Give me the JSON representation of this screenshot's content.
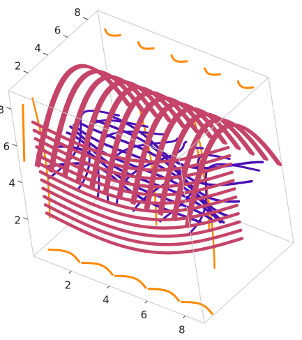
{
  "chart_data": {
    "type": "line",
    "projection": "3d",
    "axes": {
      "x": {
        "range": [
          0,
          9
        ],
        "ticks": [
          "2",
          "4",
          "6",
          "8"
        ]
      },
      "y": {
        "range": [
          0,
          9
        ],
        "ticks": [
          "2",
          "4",
          "6",
          "8"
        ]
      },
      "z": {
        "range": [
          0,
          9
        ],
        "ticks": [
          "2",
          "4",
          "6",
          "8"
        ]
      }
    },
    "boxed": true,
    "grid": false,
    "legend": "none",
    "series": [
      {
        "color": "#ff8800",
        "family": "orange",
        "count": 18
      },
      {
        "color": "#c5456a",
        "family": "pink",
        "count": 24
      },
      {
        "color": "#4a0fb5",
        "family": "purple",
        "count": 16
      }
    ]
  }
}
